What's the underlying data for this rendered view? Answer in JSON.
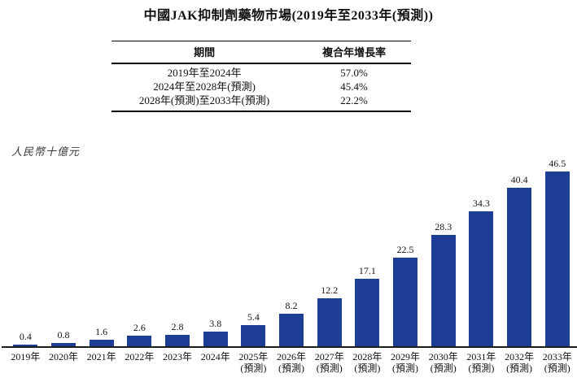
{
  "title": "中國JAK抑制劑藥物市場(2019年至2033年(預測))",
  "cagr_table": {
    "headers": [
      "期間",
      "複合年增長率"
    ],
    "rows": [
      {
        "period": "2019年至2024年",
        "cagr": "57.0%"
      },
      {
        "period": "2024年至2028年(預測)",
        "cagr": "45.4%"
      },
      {
        "period": "2028年(預測)至2033年(預測)",
        "cagr": "22.2%"
      }
    ]
  },
  "y_axis_unit": "人民幣十億元",
  "chart_data": {
    "type": "bar",
    "title": "中國JAK抑制劑藥物市場(2019年至2033年(預測))",
    "ylabel": "人民幣十億元",
    "categories": [
      "2019年",
      "2020年",
      "2021年",
      "2022年",
      "2023年",
      "2024年",
      "2025年",
      "2026年",
      "2027年",
      "2028年",
      "2029年",
      "2030年",
      "2031年",
      "2032年",
      "2033年"
    ],
    "values": [
      0.4,
      0.8,
      1.6,
      2.6,
      2.8,
      3.8,
      5.4,
      8.2,
      12.2,
      17.1,
      22.5,
      28.3,
      34.3,
      40.4,
      46.5
    ],
    "forecast_suffix": "(預測)",
    "forecast_from_index": 6,
    "data_labels": true,
    "grid": false,
    "legend": false,
    "ylim": [
      0,
      48
    ],
    "bar_color": "#1e3d96",
    "axis_color": "#1c1c1c"
  }
}
